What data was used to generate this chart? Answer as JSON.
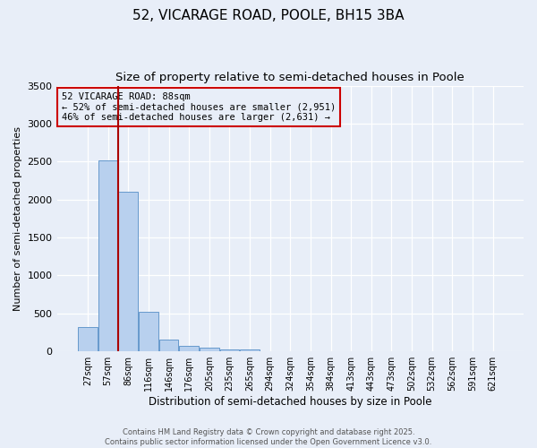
{
  "title": "52, VICARAGE ROAD, POOLE, BH15 3BA",
  "subtitle": "Size of property relative to semi-detached houses in Poole",
  "xlabel": "Distribution of semi-detached houses by size in Poole",
  "ylabel": "Number of semi-detached properties",
  "categories": [
    "27sqm",
    "57sqm",
    "86sqm",
    "116sqm",
    "146sqm",
    "176sqm",
    "205sqm",
    "235sqm",
    "265sqm",
    "294sqm",
    "324sqm",
    "354sqm",
    "384sqm",
    "413sqm",
    "443sqm",
    "473sqm",
    "502sqm",
    "532sqm",
    "562sqm",
    "591sqm",
    "621sqm"
  ],
  "values": [
    320,
    2520,
    2100,
    520,
    155,
    75,
    45,
    30,
    28,
    5,
    3,
    2,
    1,
    1,
    0,
    0,
    0,
    0,
    0,
    0,
    0
  ],
  "bar_color": "#b8d0ee",
  "bar_edge_color": "#6699cc",
  "property_bin_index": 2,
  "property_line_x": 1.5,
  "property_line_color": "#aa0000",
  "annotation_text": "52 VICARAGE ROAD: 88sqm\n← 52% of semi-detached houses are smaller (2,951)\n46% of semi-detached houses are larger (2,631) →",
  "annotation_box_color": "#cc0000",
  "ylim": [
    0,
    3500
  ],
  "yticks": [
    0,
    500,
    1000,
    1500,
    2000,
    2500,
    3000,
    3500
  ],
  "background_color": "#e8eef8",
  "grid_color": "#ffffff",
  "footer_line1": "Contains HM Land Registry data © Crown copyright and database right 2025.",
  "footer_line2": "Contains public sector information licensed under the Open Government Licence v3.0.",
  "title_fontsize": 11,
  "subtitle_fontsize": 9.5,
  "ann_fontsize": 7.5,
  "xlabel_fontsize": 8.5,
  "ylabel_fontsize": 8
}
